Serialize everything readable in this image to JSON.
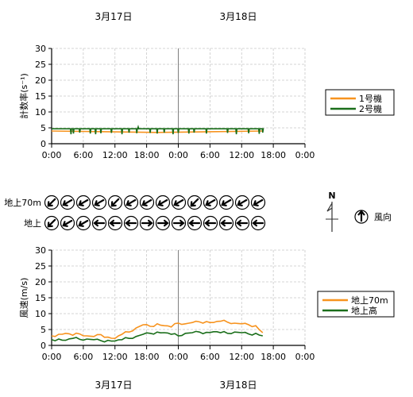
{
  "date_labels": [
    "3月17日",
    "3月18日"
  ],
  "compass": {
    "north_label": "N",
    "legend_label": "風向"
  },
  "chart_data": [
    {
      "type": "line",
      "ylabel": "計数率(s⁻¹)",
      "ylim": [
        0,
        30
      ],
      "yticks": [
        0,
        5,
        10,
        15,
        20,
        25,
        30
      ],
      "xlim": [
        0,
        72
      ],
      "x_tick_labels": [
        "0:00",
        "6:00",
        "12:00",
        "18:00",
        "0:00",
        "6:00",
        "12:00",
        "18:00",
        "0:00"
      ],
      "grid": true,
      "legend_position": "right",
      "series": [
        {
          "name": "1号機",
          "color": "#f7931e",
          "x": [
            0,
            60
          ],
          "y": [
            4.0,
            4.0
          ]
        },
        {
          "name": "2号機",
          "color": "#1a6e1a",
          "x": [
            0,
            60
          ],
          "y": [
            4.7,
            4.7
          ],
          "dips": [
            [
              5.5,
              3.0
            ],
            [
              6.2,
              3.2
            ],
            [
              8,
              3.5
            ],
            [
              11,
              3.2
            ],
            [
              12.5,
              3.0
            ],
            [
              14,
              3.3
            ],
            [
              17,
              3.4
            ],
            [
              20,
              3.0
            ],
            [
              22,
              3.5
            ],
            [
              24.2,
              3.3
            ],
            [
              24.6,
              5.3
            ],
            [
              28,
              3.4
            ],
            [
              30,
              3.2
            ],
            [
              32,
              3.5
            ],
            [
              34.5,
              3.0
            ],
            [
              36,
              3.4
            ],
            [
              39,
              3.2
            ],
            [
              40.5,
              3.5
            ],
            [
              44,
              3.2
            ],
            [
              50,
              3.4
            ],
            [
              52.5,
              3.0
            ],
            [
              56,
              3.3
            ],
            [
              59,
              3.1
            ],
            [
              60,
              3.5
            ]
          ]
        }
      ]
    },
    {
      "type": "line",
      "ylabel": "風速(m/s)",
      "ylim": [
        0,
        30
      ],
      "yticks": [
        0,
        5,
        10,
        15,
        20,
        25,
        30
      ],
      "xlim": [
        0,
        72
      ],
      "x_tick_labels": [
        "0:00",
        "6:00",
        "12:00",
        "18:00",
        "0:00",
        "6:00",
        "12:00",
        "18:00",
        "0:00"
      ],
      "grid": true,
      "legend_position": "right",
      "series": [
        {
          "name": "地上70m",
          "color": "#f7931e",
          "x": [
            0,
            2,
            4,
            6,
            8,
            10,
            12,
            14,
            16,
            18,
            20,
            22,
            24,
            26,
            28,
            30,
            32,
            34,
            36,
            38,
            40,
            42,
            44,
            46,
            48,
            50,
            52,
            54,
            56,
            58,
            60
          ],
          "y": [
            3.0,
            3.5,
            3.8,
            3.2,
            3.6,
            3.0,
            2.8,
            3.4,
            2.6,
            2.2,
            3.5,
            4.2,
            5.5,
            6.5,
            6.0,
            6.8,
            6.2,
            5.8,
            7.0,
            6.8,
            7.2,
            7.4,
            7.5,
            7.2,
            7.6,
            7.3,
            7.0,
            6.8,
            6.5,
            6.2,
            4.0
          ]
        },
        {
          "name": "地上高",
          "color": "#1a6e1a",
          "x": [
            0,
            2,
            4,
            6,
            8,
            10,
            12,
            14,
            16,
            18,
            20,
            22,
            24,
            26,
            28,
            30,
            32,
            34,
            36,
            38,
            40,
            42,
            44,
            46,
            48,
            50,
            52,
            54,
            56,
            58,
            60
          ],
          "y": [
            1.8,
            2.0,
            1.6,
            2.2,
            1.9,
            2.0,
            1.8,
            1.5,
            1.6,
            1.4,
            1.8,
            2.2,
            2.8,
            3.5,
            3.8,
            4.2,
            4.0,
            3.5,
            3.0,
            3.8,
            4.0,
            4.2,
            4.1,
            4.3,
            4.0,
            3.8,
            4.2,
            4.0,
            3.6,
            3.8,
            3.0
          ]
        }
      ]
    }
  ],
  "wind_direction": {
    "rows": [
      {
        "label": "地上70m",
        "angles": [
          225,
          240,
          240,
          240,
          225,
          240,
          240,
          240,
          240,
          225,
          240,
          240,
          240,
          240,
          240,
          240,
          240
        ]
      },
      {
        "label": "地上",
        "angles": [
          225,
          240,
          240,
          270,
          270,
          270,
          90,
          90,
          90,
          270,
          270,
          270,
          270,
          270,
          270,
          270,
          270
        ]
      }
    ]
  }
}
